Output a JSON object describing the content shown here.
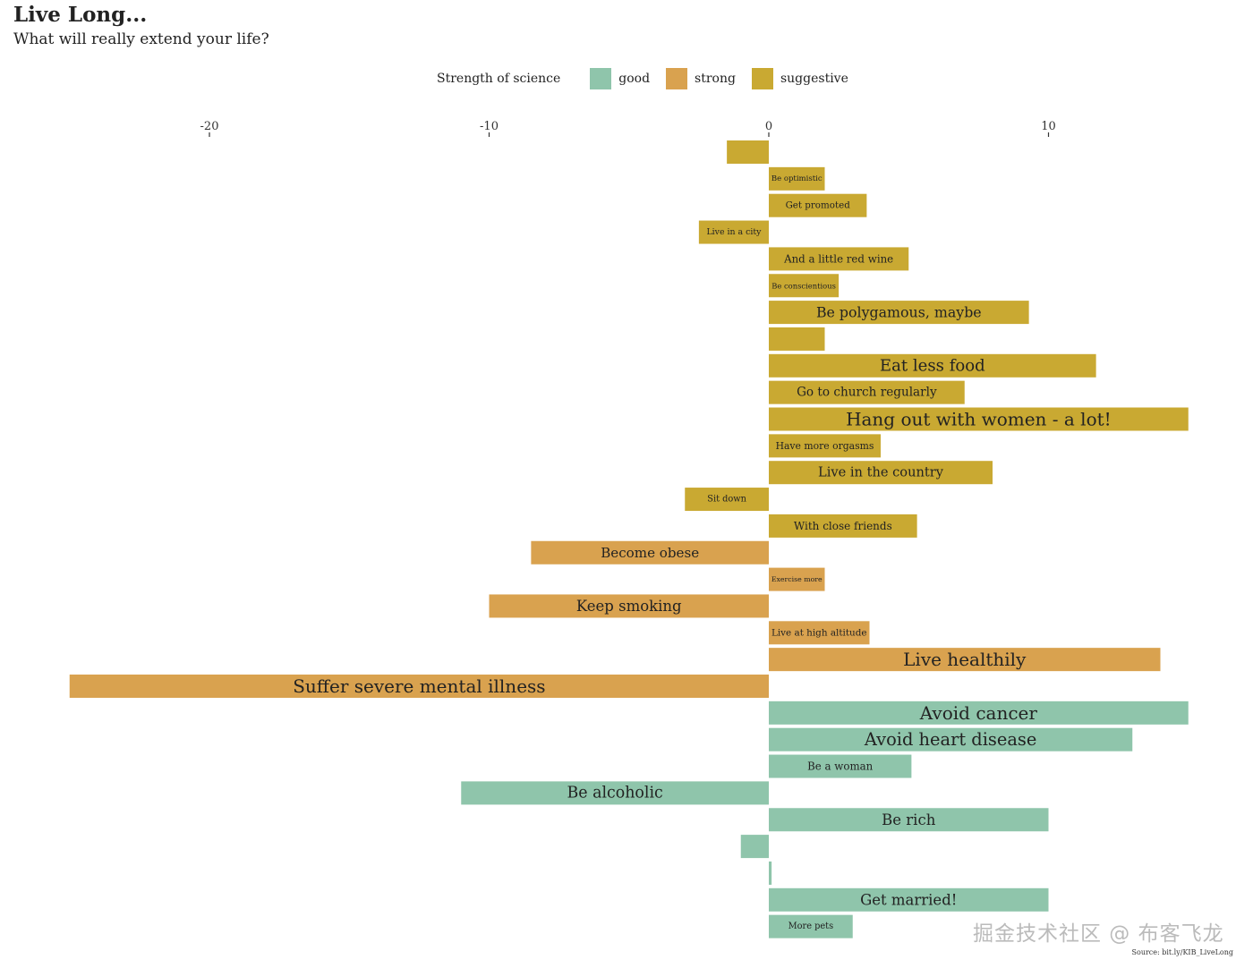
{
  "title": "Live Long...",
  "subtitle": "What will really extend your life?",
  "legend": {
    "title": "Strength of science",
    "items": [
      {
        "label": "good",
        "color": "#8fc5ab"
      },
      {
        "label": "strong",
        "color": "#d9a24f"
      },
      {
        "label": "suggestive",
        "color": "#c9a932"
      }
    ]
  },
  "source": "Source: bit.ly/KIB_LiveLong",
  "watermark": "掘金技术社区 @ 布客飞龙",
  "chart_data": {
    "type": "bar",
    "orientation": "horizontal",
    "xlim": [
      -25,
      15
    ],
    "xticks": [
      -20,
      -10,
      0,
      10
    ],
    "xtick_labels": [
      "-20",
      "-10",
      "0",
      "10"
    ],
    "axis_position": "top",
    "grid": false,
    "legend_position": "top",
    "colors": {
      "good": "#8fc5ab",
      "strong": "#d9a24f",
      "suggestive": "#c9a932"
    },
    "bars": [
      {
        "label": "",
        "value": -1.5,
        "strength": "suggestive"
      },
      {
        "label": "Be optimistic",
        "value": 2,
        "strength": "suggestive"
      },
      {
        "label": "Get promoted",
        "value": 3.5,
        "strength": "suggestive"
      },
      {
        "label": "Live in a city",
        "value": -2.5,
        "strength": "suggestive"
      },
      {
        "label": "And a little red wine",
        "value": 5,
        "strength": "suggestive"
      },
      {
        "label": "Be conscientious",
        "value": 2.5,
        "strength": "suggestive"
      },
      {
        "label": "Be polygamous, maybe",
        "value": 9.3,
        "strength": "suggestive"
      },
      {
        "label": "",
        "value": 2,
        "strength": "suggestive"
      },
      {
        "label": "Eat less food",
        "value": 11.7,
        "strength": "suggestive"
      },
      {
        "label": "Go to church regularly",
        "value": 7,
        "strength": "suggestive"
      },
      {
        "label": "Hang out with women - a lot!",
        "value": 15,
        "strength": "suggestive"
      },
      {
        "label": "Have more orgasms",
        "value": 4,
        "strength": "suggestive"
      },
      {
        "label": "Live in the country",
        "value": 8,
        "strength": "suggestive"
      },
      {
        "label": "Sit down",
        "value": -3,
        "strength": "suggestive"
      },
      {
        "label": "With close friends",
        "value": 5.3,
        "strength": "suggestive"
      },
      {
        "label": "Become obese",
        "value": -8.5,
        "strength": "strong"
      },
      {
        "label": "Exercise more",
        "value": 2,
        "strength": "strong"
      },
      {
        "label": "Keep smoking",
        "value": -10,
        "strength": "strong"
      },
      {
        "label": "Live at high altitude",
        "value": 3.6,
        "strength": "strong"
      },
      {
        "label": "Live healthily",
        "value": 14,
        "strength": "strong"
      },
      {
        "label": "Suffer severe mental illness",
        "value": -25,
        "strength": "strong"
      },
      {
        "label": "Avoid cancer",
        "value": 15,
        "strength": "good"
      },
      {
        "label": "Avoid heart disease",
        "value": 13,
        "strength": "good"
      },
      {
        "label": "Be a woman",
        "value": 5.1,
        "strength": "good"
      },
      {
        "label": "Be alcoholic",
        "value": -11,
        "strength": "good"
      },
      {
        "label": "Be rich",
        "value": 10,
        "strength": "good"
      },
      {
        "label": "",
        "value": -1,
        "strength": "good"
      },
      {
        "label": "",
        "value": 0.1,
        "strength": "good"
      },
      {
        "label": "Get married!",
        "value": 10,
        "strength": "good"
      },
      {
        "label": "More pets",
        "value": 3,
        "strength": "good"
      }
    ]
  }
}
